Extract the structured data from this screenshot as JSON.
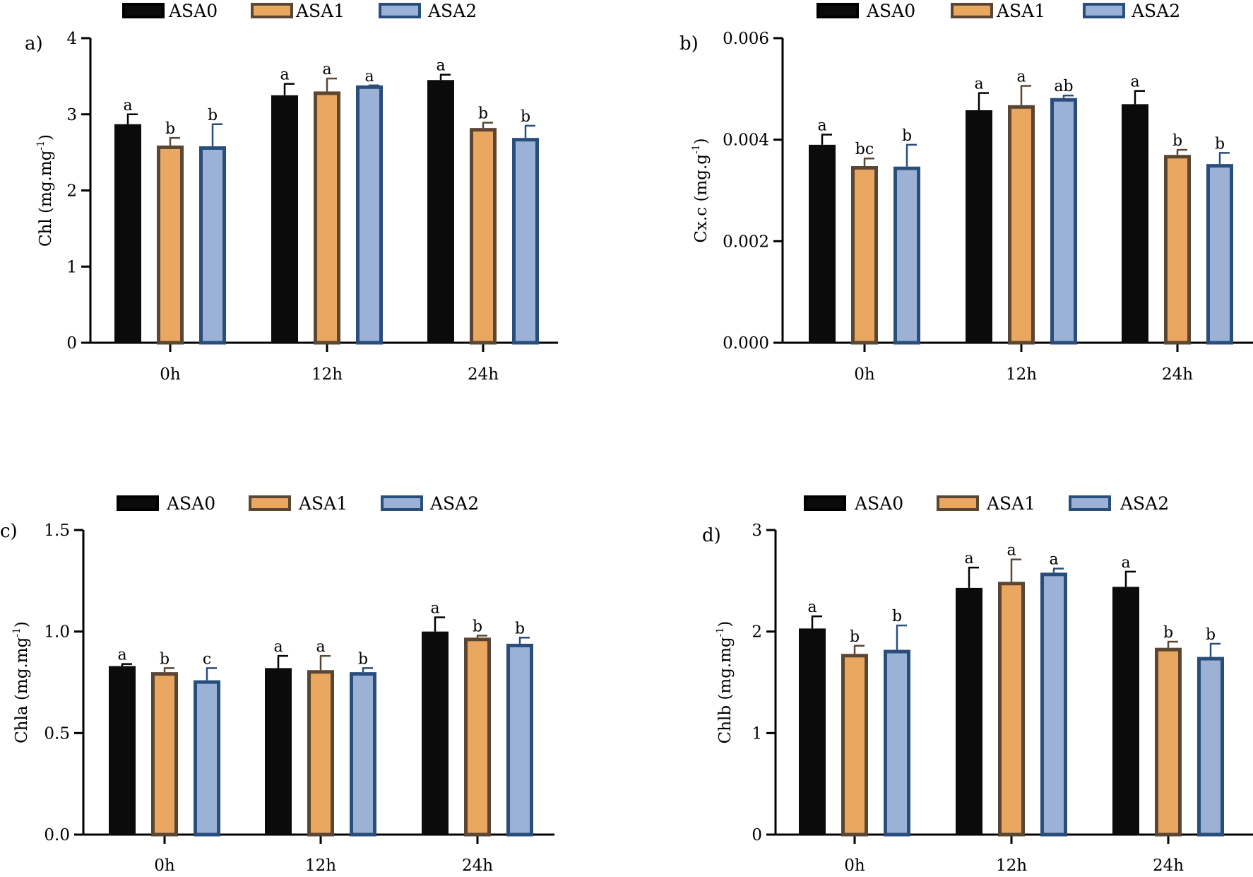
{
  "colors": {
    "ASA0": {
      "fill": "#0b0b0b",
      "stroke": "#000000"
    },
    "ASA1": {
      "fill": "#e9a75f",
      "stroke": "#5a4632"
    },
    "ASA2": {
      "fill": "#9bb2d6",
      "stroke": "#2a4e7c"
    },
    "axis": "#000000"
  },
  "chart_data": [
    {
      "type": "bar",
      "panel": "a)",
      "ylabel": {
        "main": "Chl (mg.mg",
        "sup": "-1",
        "close": ")"
      },
      "categories": [
        "0h",
        "12h",
        "24h"
      ],
      "legend": [
        "ASA0",
        "ASA1",
        "ASA2"
      ],
      "ylim": [
        0,
        4
      ],
      "yticks": [
        {
          "value": 0,
          "label": "0"
        },
        {
          "value": 1,
          "label": "1"
        },
        {
          "value": 2,
          "label": "2"
        },
        {
          "value": 3,
          "label": "3"
        },
        {
          "value": 4,
          "label": "4"
        }
      ],
      "series": [
        {
          "name": "ASA0",
          "values": [
            2.87,
            3.25,
            3.45
          ],
          "errors": [
            0.13,
            0.15,
            0.07
          ],
          "letters": [
            "a",
            "a",
            "a"
          ]
        },
        {
          "name": "ASA1",
          "values": [
            2.59,
            3.3,
            2.82
          ],
          "errors": [
            0.1,
            0.17,
            0.07
          ],
          "letters": [
            "b",
            "a",
            "b"
          ]
        },
        {
          "name": "ASA2",
          "values": [
            2.58,
            3.38,
            2.69
          ],
          "errors": [
            0.29,
            0.0,
            0.16
          ],
          "letters": [
            "b",
            "a",
            "b"
          ]
        }
      ]
    },
    {
      "type": "bar",
      "panel": "b)",
      "ylabel": {
        "main": "Cx.c (mg.g",
        "sup": "-1",
        "close": ")"
      },
      "categories": [
        "0h",
        "12h",
        "24h"
      ],
      "legend": [
        "ASA0",
        "ASA1",
        "ASA2"
      ],
      "ylim": [
        0,
        0.006
      ],
      "yticks": [
        {
          "value": 0,
          "label": "0.000"
        },
        {
          "value": 0.002,
          "label": "0.002"
        },
        {
          "value": 0.004,
          "label": "0.004"
        },
        {
          "value": 0.006,
          "label": "0.006"
        }
      ],
      "series": [
        {
          "name": "ASA0",
          "values": [
            0.0039,
            0.00458,
            0.0047
          ],
          "errors": [
            0.0002,
            0.00034,
            0.00026
          ],
          "letters": [
            "a",
            "a",
            "a"
          ]
        },
        {
          "name": "ASA1",
          "values": [
            0.00348,
            0.00468,
            0.0037
          ],
          "errors": [
            0.00015,
            0.00038,
            0.0001
          ],
          "letters": [
            "bc",
            "a",
            "b"
          ]
        },
        {
          "name": "ASA2",
          "values": [
            0.00347,
            0.00482,
            0.00352
          ],
          "errors": [
            0.00043,
            5e-05,
            0.00022
          ],
          "letters": [
            "b",
            "ab",
            "b"
          ]
        }
      ]
    },
    {
      "type": "bar",
      "panel": "c)",
      "ylabel": {
        "main": "Chla (mg.mg",
        "sup": "-1",
        "close": ")"
      },
      "categories": [
        "0h",
        "12h",
        "24h"
      ],
      "legend": [
        "ASA0",
        "ASA1",
        "ASA2"
      ],
      "ylim": [
        0,
        1.5
      ],
      "yticks": [
        {
          "value": 0,
          "label": "0.0"
        },
        {
          "value": 0.5,
          "label": "0.5"
        },
        {
          "value": 1.0,
          "label": "1.0"
        },
        {
          "value": 1.5,
          "label": "1.5"
        }
      ],
      "series": [
        {
          "name": "ASA0",
          "values": [
            0.83,
            0.82,
            1.0
          ],
          "errors": [
            0.01,
            0.06,
            0.07
          ],
          "letters": [
            "a",
            "a",
            "a"
          ]
        },
        {
          "name": "ASA1",
          "values": [
            0.8,
            0.81,
            0.97
          ],
          "errors": [
            0.02,
            0.07,
            0.01
          ],
          "letters": [
            "b",
            "a",
            "b"
          ]
        },
        {
          "name": "ASA2",
          "values": [
            0.76,
            0.8,
            0.94
          ],
          "errors": [
            0.06,
            0.02,
            0.03
          ],
          "letters": [
            "c",
            "b",
            "b"
          ]
        }
      ]
    },
    {
      "type": "bar",
      "panel": "d)",
      "ylabel": {
        "main": "Chlb (mg.mg",
        "sup": "-1",
        "close": ")"
      },
      "categories": [
        "0h",
        "12h",
        "24h"
      ],
      "legend": [
        "ASA0",
        "ASA1",
        "ASA2"
      ],
      "ylim": [
        0,
        3
      ],
      "yticks": [
        {
          "value": 0,
          "label": "0"
        },
        {
          "value": 1,
          "label": "1"
        },
        {
          "value": 2,
          "label": "2"
        },
        {
          "value": 3,
          "label": "3"
        }
      ],
      "series": [
        {
          "name": "ASA0",
          "values": [
            2.03,
            2.43,
            2.44
          ],
          "errors": [
            0.12,
            0.2,
            0.15
          ],
          "letters": [
            "a",
            "a",
            "a"
          ]
        },
        {
          "name": "ASA1",
          "values": [
            1.78,
            2.49,
            1.84
          ],
          "errors": [
            0.08,
            0.22,
            0.06
          ],
          "letters": [
            "b",
            "a",
            "b"
          ]
        },
        {
          "name": "ASA2",
          "values": [
            1.82,
            2.58,
            1.75
          ],
          "errors": [
            0.24,
            0.04,
            0.13
          ],
          "letters": [
            "b",
            "a",
            "b"
          ]
        }
      ]
    }
  ]
}
